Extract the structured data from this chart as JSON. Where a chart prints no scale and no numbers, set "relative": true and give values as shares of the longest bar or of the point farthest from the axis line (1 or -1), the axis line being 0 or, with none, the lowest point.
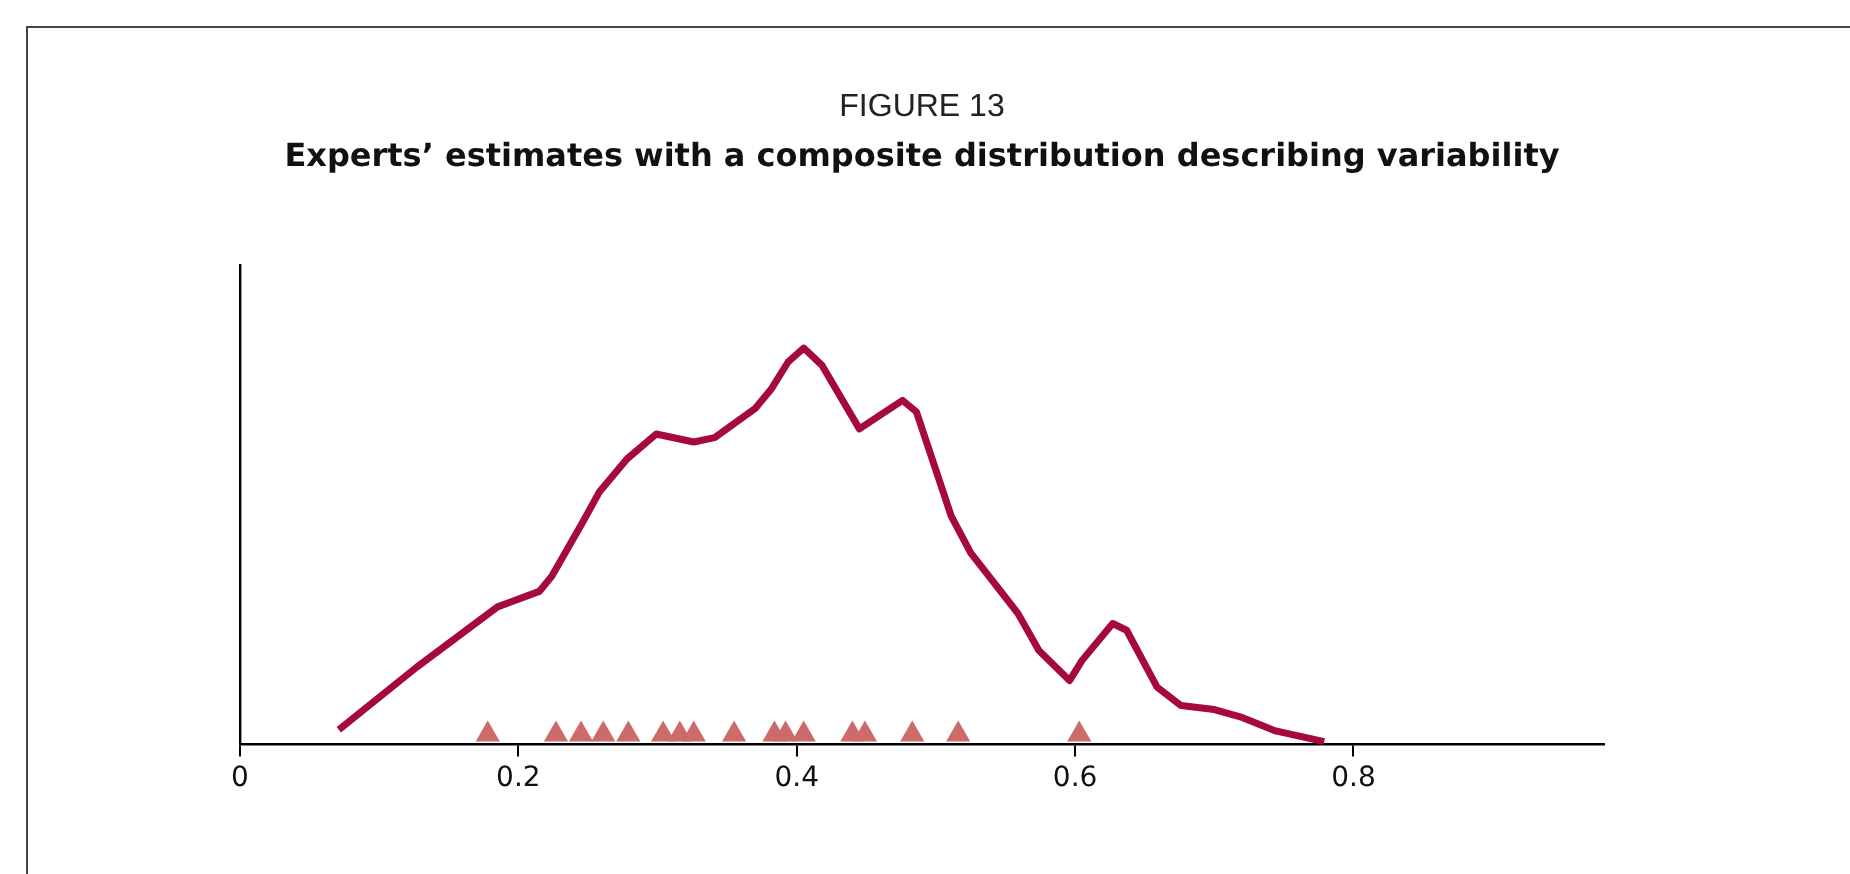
{
  "chart_data": {
    "type": "line",
    "title": "FIGURE 13",
    "subtitle": "Experts’ estimates with a composite distribution describing variability",
    "relative": true,
    "xlim": [
      0,
      0.98
    ],
    "xticks": [
      0,
      0.2,
      0.4,
      0.6,
      0.8
    ],
    "series": [
      {
        "color": "#a6093d",
        "marker": "none",
        "x": [
          0.071,
          0.127,
          0.185,
          0.215,
          0.224,
          0.246,
          0.258,
          0.278,
          0.299,
          0.326,
          0.341,
          0.37,
          0.382,
          0.394,
          0.405,
          0.418,
          0.445,
          0.476,
          0.486,
          0.511,
          0.525,
          0.559,
          0.574,
          0.596,
          0.605,
          0.627,
          0.637,
          0.659,
          0.676,
          0.7,
          0.72,
          0.744,
          0.779
        ],
        "values": [
          0.037,
          0.195,
          0.347,
          0.386,
          0.424,
          0.559,
          0.636,
          0.72,
          0.783,
          0.763,
          0.774,
          0.847,
          0.898,
          0.966,
          1.0,
          0.957,
          0.796,
          0.868,
          0.839,
          0.576,
          0.483,
          0.33,
          0.237,
          0.161,
          0.212,
          0.305,
          0.288,
          0.144,
          0.098,
          0.088,
          0.068,
          0.034,
          0.007
        ]
      },
      {
        "type": "scatter",
        "color": "#cd6b6b",
        "marker": "triangle",
        "x": [
          0.178,
          0.227,
          0.245,
          0.261,
          0.279,
          0.304,
          0.316,
          0.326,
          0.355,
          0.384,
          0.392,
          0.405,
          0.44,
          0.449,
          0.483,
          0.516,
          0.603
        ],
        "values": [
          0.025,
          0.025,
          0.025,
          0.025,
          0.025,
          0.025,
          0.025,
          0.025,
          0.025,
          0.025,
          0.025,
          0.025,
          0.025,
          0.025,
          0.025,
          0.025,
          0.025
        ]
      }
    ]
  }
}
